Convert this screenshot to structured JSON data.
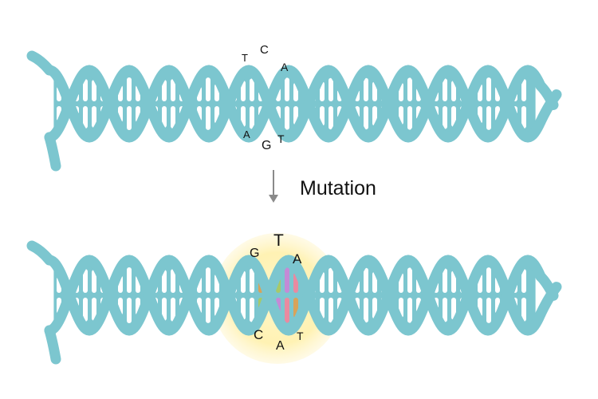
{
  "colors": {
    "strand": "#7cc6cf",
    "rung": "#ffffff",
    "glow": "#fff3b8",
    "arrow": "#8a8a8a",
    "text": "#111111",
    "mutated_rungs": [
      "#c48ad6",
      "#e98aa0",
      "#d8a35a",
      "#a7c96a"
    ]
  },
  "top_helix": {
    "bases_top": [
      "T",
      "C",
      "A"
    ],
    "bases_bottom": [
      "A",
      "G",
      "T"
    ]
  },
  "arrow": {
    "label": "Mutation",
    "icon": "down-arrow-icon"
  },
  "bottom_helix": {
    "bases_top": [
      "G",
      "T",
      "A"
    ],
    "bases_bottom": [
      "C",
      "A",
      "T"
    ]
  }
}
